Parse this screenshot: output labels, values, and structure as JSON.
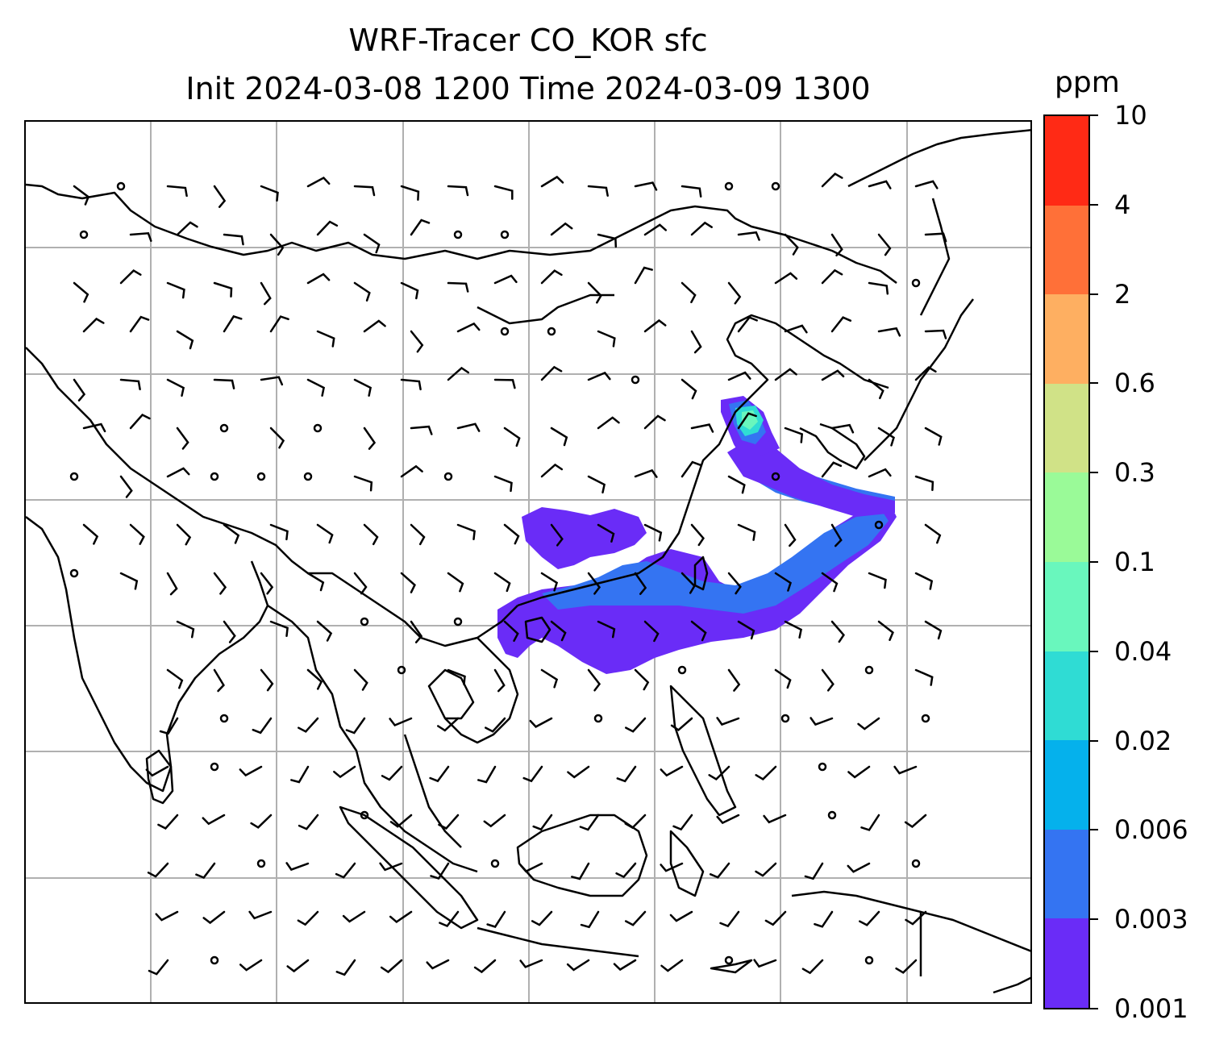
{
  "title": {
    "line1": "WRF-Tracer CO_KOR sfc",
    "line2": "Init 2024-03-08 1200 Time 2024-03-09 1300"
  },
  "colorbar": {
    "unit": "ppm",
    "levels": [
      "0.001",
      "0.003",
      "0.006",
      "0.02",
      "0.04",
      "0.1",
      "0.3",
      "0.6",
      "2",
      "4",
      "10"
    ],
    "colors": [
      "#6a2cf7",
      "#3474f2",
      "#05b1ec",
      "#2fdcd4",
      "#69f7bd",
      "#9afa98",
      "#d0e287",
      "#feaf61",
      "#ff7038",
      "#ff2a15"
    ]
  },
  "map": {
    "gridlines": true,
    "gridline_color": "#b0b0b0",
    "coastline_color": "#000000",
    "plume_color_low": "#6a2cf7",
    "plume_color_mid": "#3474f2",
    "plume_color_high": "#69f7bd"
  }
}
